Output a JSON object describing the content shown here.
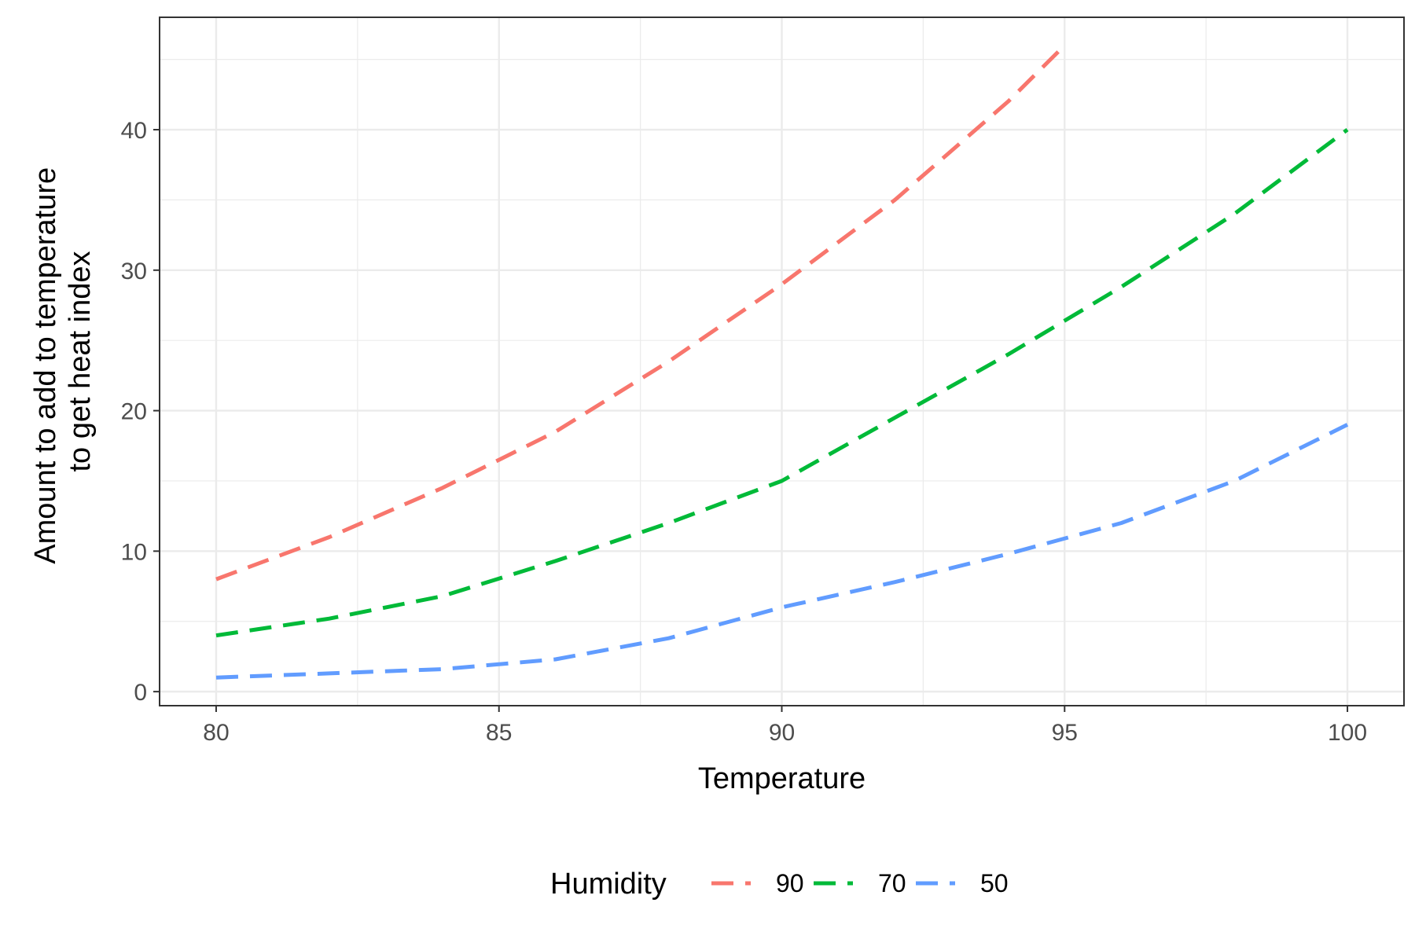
{
  "chart_data": {
    "type": "line",
    "xlabel": "Temperature",
    "ylabel_lines": [
      "Amount to add to temperature",
      "to get heat index"
    ],
    "xlim": [
      79,
      101
    ],
    "ylim": [
      -1,
      48
    ],
    "x_ticks": [
      80,
      85,
      90,
      95,
      100
    ],
    "x_tick_labels": [
      "80",
      "85",
      "90",
      "95",
      "100"
    ],
    "y_ticks": [
      0,
      10,
      20,
      30,
      40
    ],
    "y_tick_labels": [
      "0",
      "10",
      "20",
      "30",
      "40"
    ],
    "grid": true,
    "line_style": "dashed",
    "legend": {
      "title": "Humidity",
      "placement": "bottom"
    },
    "series": [
      {
        "name": "90",
        "color": "#F8766D",
        "x": [
          80,
          82,
          84,
          86,
          88,
          90,
          92,
          94,
          95
        ],
        "y": [
          8,
          11,
          14.5,
          18.5,
          23.5,
          29,
          35,
          42,
          46
        ]
      },
      {
        "name": "70",
        "color": "#00BA38",
        "x": [
          80,
          82,
          84,
          86,
          88,
          90,
          92,
          94,
          96,
          98,
          100
        ],
        "y": [
          4,
          5.2,
          6.8,
          9.3,
          12,
          15,
          19.5,
          24,
          28.8,
          34,
          40
        ]
      },
      {
        "name": "50",
        "color": "#619CFF",
        "x": [
          80,
          82,
          84,
          86,
          88,
          90,
          92,
          94,
          96,
          98,
          100
        ],
        "y": [
          1,
          1.3,
          1.6,
          2.3,
          3.8,
          6,
          7.8,
          9.8,
          12,
          15,
          19
        ]
      }
    ]
  }
}
